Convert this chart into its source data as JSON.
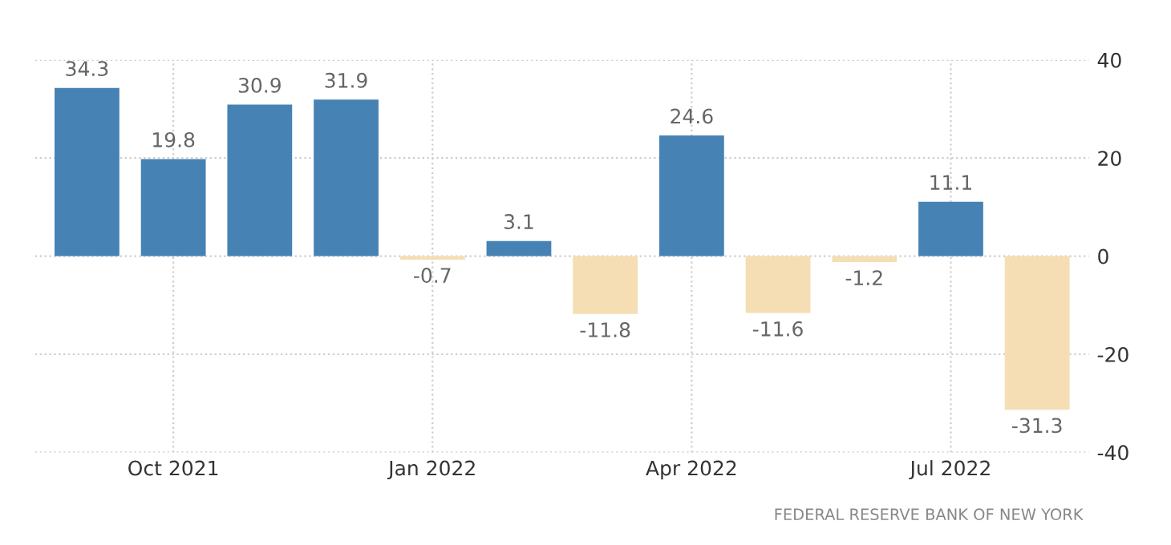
{
  "chart_data": {
    "type": "bar",
    "categories": [
      null,
      "Oct 2021",
      null,
      null,
      "Jan 2022",
      null,
      null,
      "Apr 2022",
      null,
      null,
      "Jul 2022",
      null
    ],
    "values": [
      34.3,
      19.8,
      30.9,
      31.9,
      -0.7,
      3.1,
      -11.8,
      24.6,
      -11.6,
      -1.2,
      11.1,
      -31.3
    ],
    "colors": [
      "#4682b4",
      "#4682b4",
      "#4682b4",
      "#4682b4",
      "#f5deb3",
      "#4682b4",
      "#f5deb3",
      "#4682b4",
      "#f5deb3",
      "#f5deb3",
      "#4682b4",
      "#f5deb3"
    ],
    "data_labels": true,
    "ylim": [
      -40,
      40
    ],
    "yticks": [
      -40,
      -20,
      0,
      20,
      40
    ],
    "grid": true,
    "annotations": [
      "FEDERAL RESERVE BANK OF NEW YORK"
    ]
  }
}
